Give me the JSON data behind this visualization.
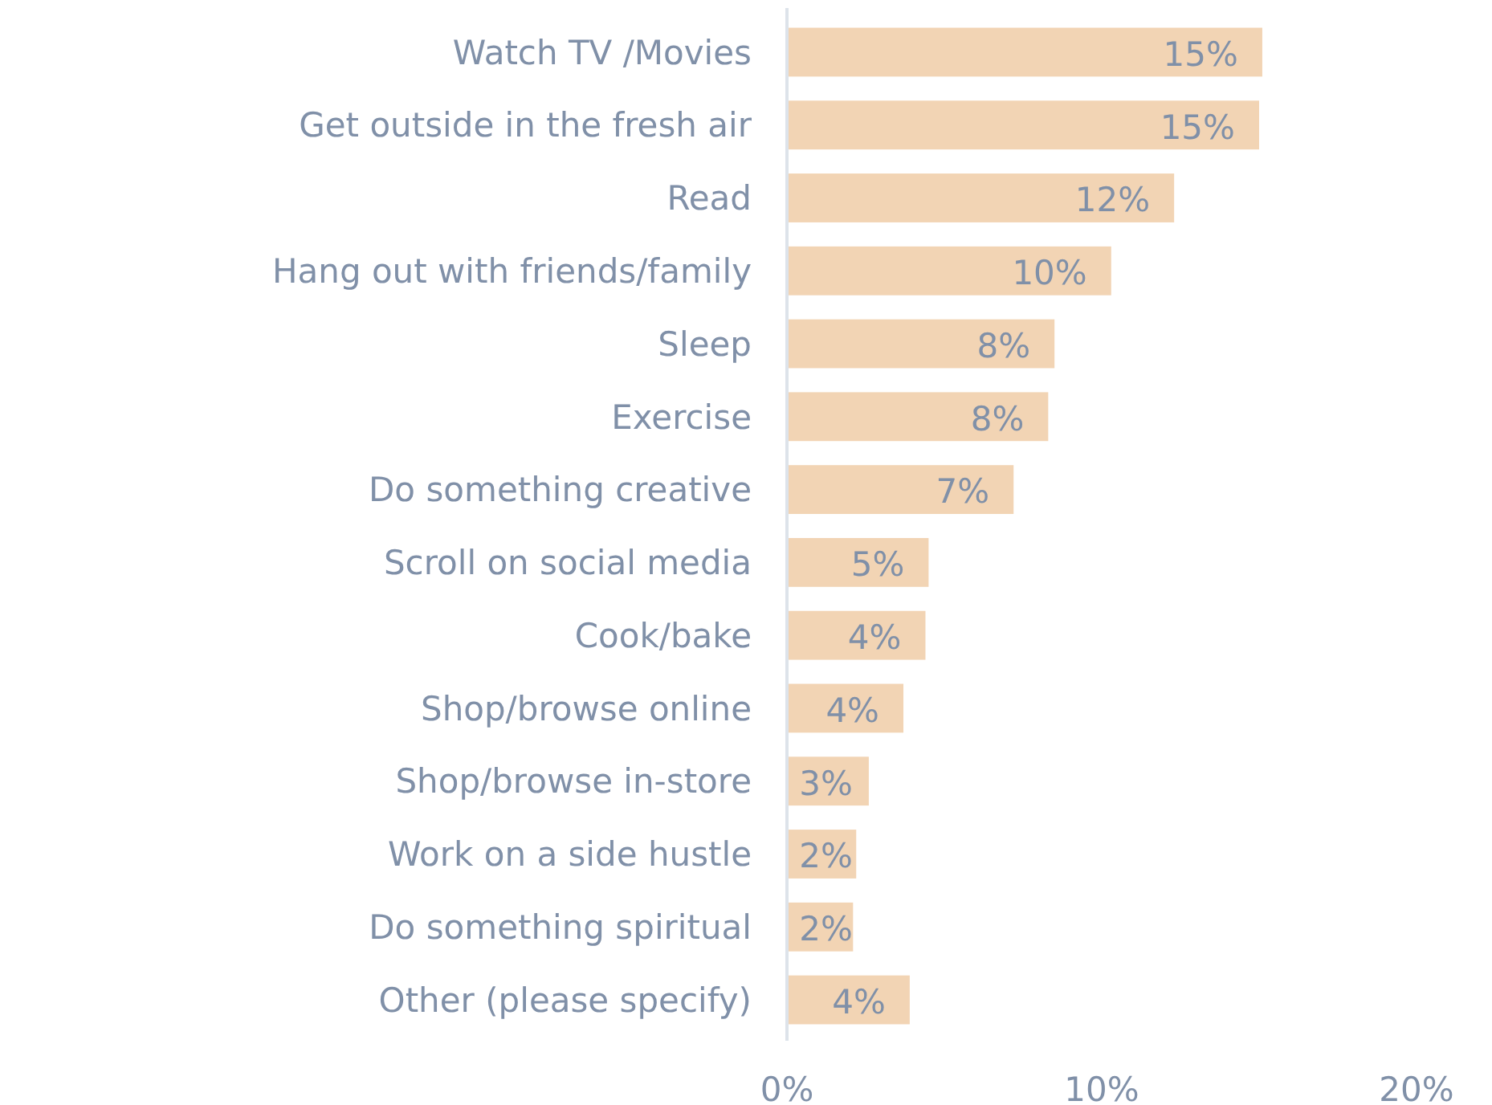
{
  "chart_data": {
    "type": "bar",
    "orientation": "horizontal",
    "categories": [
      "Watch TV /Movies",
      "Get outside in the fresh air",
      "Read",
      "Hang out with friends/family",
      "Sleep",
      "Exercise",
      "Do something creative",
      "Scroll on social media",
      "Cook/bake",
      "Shop/browse online",
      "Shop/browse in-store",
      "Work on a side hustle",
      "Do something spiritual",
      "Other (please specify)"
    ],
    "values": [
      15.1,
      15.0,
      12.3,
      10.3,
      8.5,
      8.3,
      7.2,
      4.5,
      4.4,
      3.7,
      2.6,
      2.2,
      2.1,
      3.9
    ],
    "value_labels": [
      "15%",
      "15%",
      "12%",
      "10%",
      "8%",
      "8%",
      "7%",
      "5%",
      "4%",
      "4%",
      "3%",
      "2%",
      "2%",
      "4%"
    ],
    "color": "#f2d4b4",
    "xlim": [
      0,
      20
    ],
    "xticks": [
      {
        "value": 0,
        "label": "0%"
      },
      {
        "value": 10,
        "label": "10%"
      },
      {
        "value": 20,
        "label": "20%"
      }
    ],
    "grid": false
  }
}
